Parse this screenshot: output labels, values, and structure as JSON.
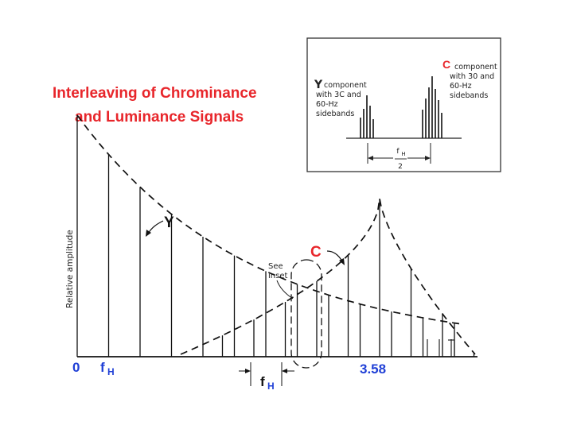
{
  "title": {
    "line1": "Interleaving of Chrominance",
    "line2": "and Luminance Signals"
  },
  "colors": {
    "title": "#e8262b",
    "y_label": "#111111",
    "c_label": "#e8262b",
    "axis_labels": "#1f3fd6",
    "lines": "#111111"
  },
  "inset": {
    "y_letter": "Y",
    "y_text": [
      "component",
      "with 3C and",
      "60-Hz",
      "sidebands"
    ],
    "c_letter": "C",
    "c_text": [
      "component",
      "with 30 and",
      "60-Hz",
      "sidebands"
    ],
    "spacing_num": "f",
    "spacing_sub": "H",
    "spacing_den": "2"
  },
  "main": {
    "y_axis_label": "Relative amplitude",
    "curve_y_label": "Y",
    "curve_c_label": "C",
    "see_inset": [
      "See",
      "inset"
    ],
    "x_zero": "0",
    "x_fh_main": "f",
    "x_fh_sub": "H",
    "x_fh_spacing_main": "f",
    "x_fh_spacing_sub": "H",
    "x_358": "3.58"
  }
}
